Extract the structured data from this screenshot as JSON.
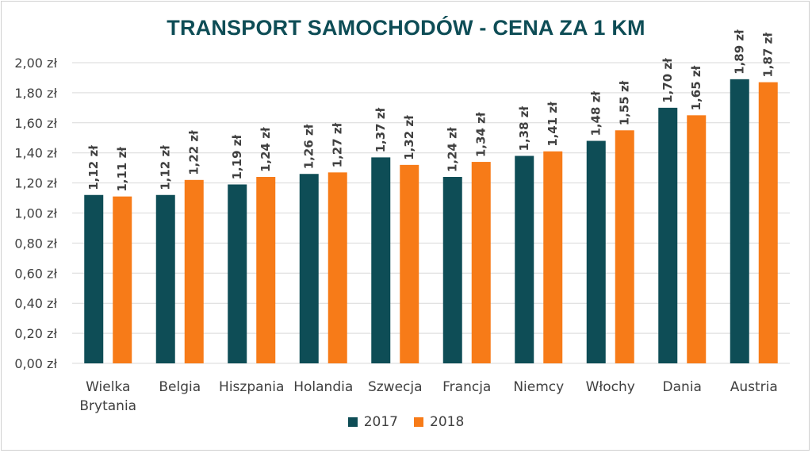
{
  "chart_data": {
    "type": "bar",
    "title": "TRANSPORT SAMOCHODÓW - CENA ZA 1 KM",
    "categories": [
      "Wielka Brytania",
      "Belgia",
      "Hiszpania",
      "Holandia",
      "Szwecja",
      "Francja",
      "Niemcy",
      "Włochy",
      "Dania",
      "Austria"
    ],
    "series": [
      {
        "name": "2017",
        "color": "#0e4d56",
        "values": [
          1.12,
          1.12,
          1.19,
          1.26,
          1.37,
          1.24,
          1.38,
          1.48,
          1.7,
          1.89
        ],
        "labels": [
          "1,12 zł",
          "1,12 zł",
          "1,19 zł",
          "1,26 zł",
          "1,37 zł",
          "1,24 zł",
          "1,38 zł",
          "1,48 zł",
          "1,70 zł",
          "1,89 zł"
        ]
      },
      {
        "name": "2018",
        "color": "#f77b18",
        "values": [
          1.11,
          1.22,
          1.24,
          1.27,
          1.32,
          1.34,
          1.41,
          1.55,
          1.65,
          1.87
        ],
        "labels": [
          "1,11 zł",
          "1,22 zł",
          "1,24 zł",
          "1,27 zł",
          "1,32 zł",
          "1,34 zł",
          "1,41 zł",
          "1,55 zł",
          "1,65 zł",
          "1,87 zł"
        ]
      }
    ],
    "yticks": [
      0,
      0.2,
      0.4,
      0.6,
      0.8,
      1.0,
      1.2,
      1.4,
      1.6,
      1.8,
      2.0
    ],
    "ytick_labels": [
      "0,00 zł",
      "0,20 zł",
      "0,40 zł",
      "0,60 zł",
      "0,80 zł",
      "1,00 zł",
      "1,20 zł",
      "1,40 zł",
      "1,60 zł",
      "1,80 zł",
      "2,00 zł"
    ],
    "ylim": [
      0,
      2.0
    ],
    "grid": true,
    "legend_position": "bottom"
  }
}
